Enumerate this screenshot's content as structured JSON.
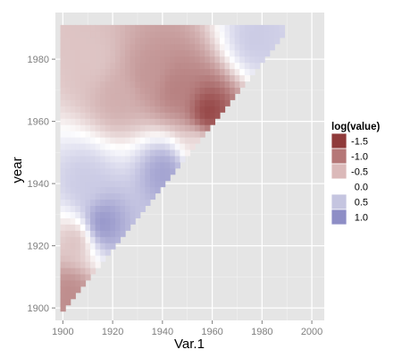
{
  "chart_data": {
    "type": "heatmap",
    "title": "",
    "xlabel": "Var.1",
    "ylabel": "year",
    "xlim": [
      1897,
      2005
    ],
    "ylim": [
      1896,
      1995
    ],
    "x_ticks": [
      1900,
      1920,
      1940,
      1960,
      1980,
      2000
    ],
    "y_ticks": [
      1900,
      1920,
      1940,
      1960,
      1980
    ],
    "grid": true,
    "x_range": [
      1900,
      1988
    ],
    "y_range": [
      1900,
      1990
    ],
    "legend": {
      "title": "log(value)",
      "position": "right",
      "entries": [
        {
          "label": "-1.5",
          "value": -1.5,
          "color": "#8f3a3a"
        },
        {
          "label": "-1.0",
          "value": -1.0,
          "color": "#b57777"
        },
        {
          "label": "-0.5",
          "value": -0.5,
          "color": "#dbb9b9"
        },
        {
          "label": "0.0",
          "value": 0.0,
          "color": "#ffffff"
        },
        {
          "label": "0.5",
          "value": 0.5,
          "color": "#c5c5e0"
        },
        {
          "label": "1.0",
          "value": 1.0,
          "color": "#8e8ec6"
        }
      ]
    },
    "colors": {
      "low": "#8f3a3a",
      "mid": "#ffffff",
      "high": "#8e8ec6"
    },
    "features": [
      {
        "x": 1958,
        "y": 1962,
        "value": -1.7
      },
      {
        "x": 1945,
        "y": 1970,
        "value": -1.1
      },
      {
        "x": 1935,
        "y": 1975,
        "value": -0.9
      },
      {
        "x": 1922,
        "y": 1968,
        "value": -0.7
      },
      {
        "x": 1912,
        "y": 1980,
        "value": -0.5
      },
      {
        "x": 1906,
        "y": 1922,
        "value": -0.6
      },
      {
        "x": 1903,
        "y": 1905,
        "value": -1.0
      },
      {
        "x": 1915,
        "y": 1927,
        "value": 1.3
      },
      {
        "x": 1909,
        "y": 1940,
        "value": 0.6
      },
      {
        "x": 1941,
        "y": 1944,
        "value": 1.1
      },
      {
        "x": 1978,
        "y": 1987,
        "value": 0.6
      },
      {
        "x": 1955,
        "y": 1953,
        "value": -0.2
      }
    ]
  }
}
